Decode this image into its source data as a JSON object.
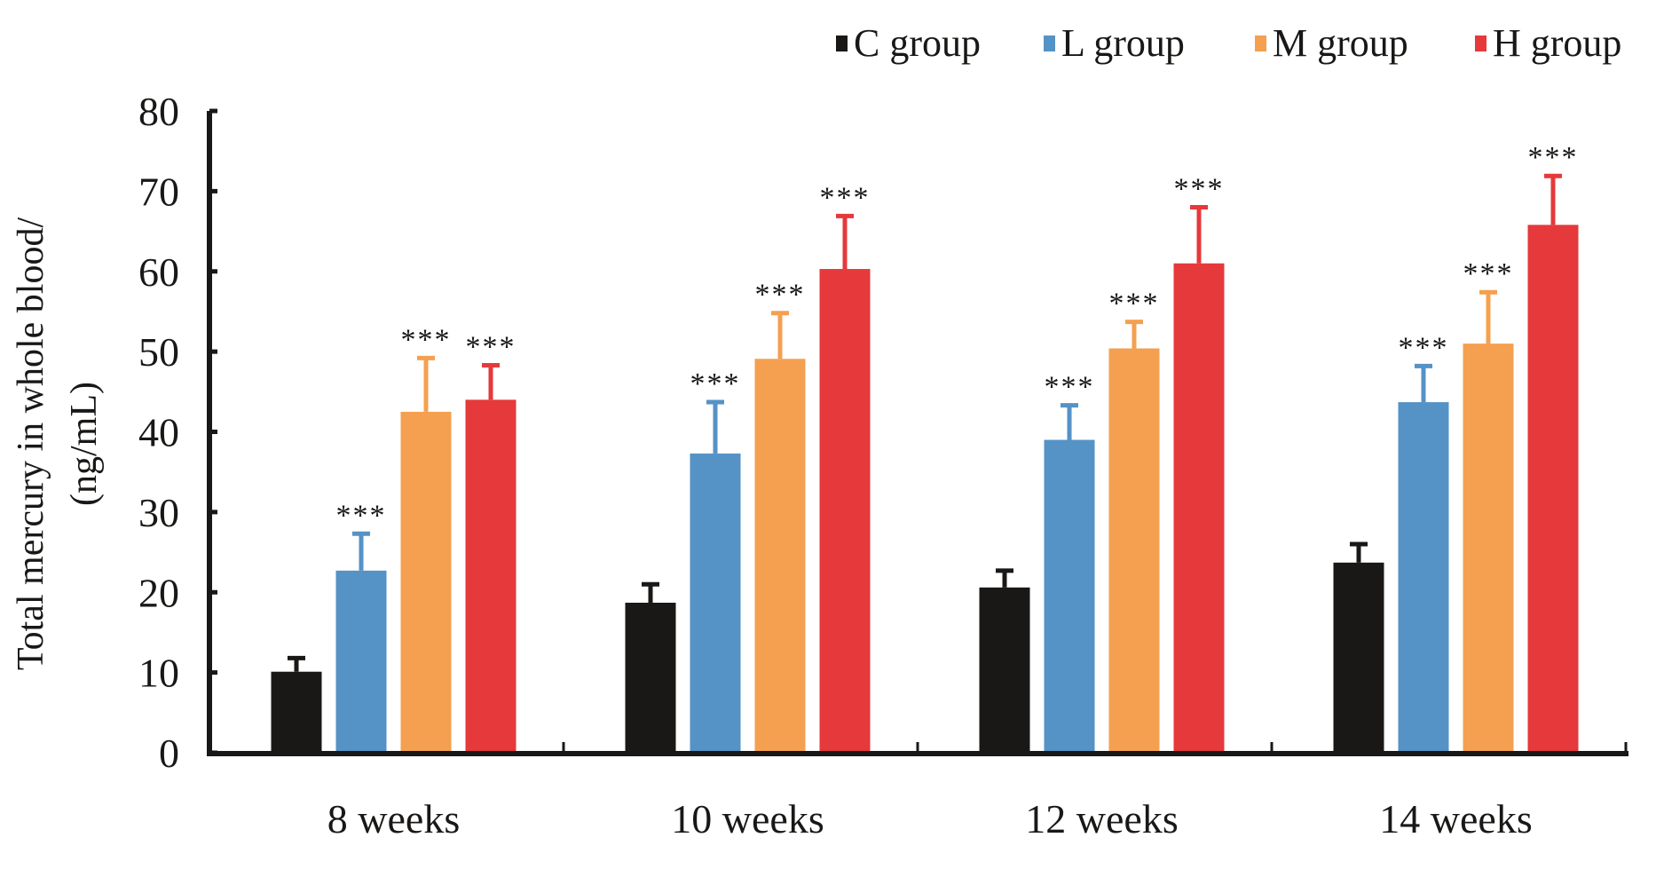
{
  "chart_data": {
    "type": "bar",
    "title": "",
    "xlabel": "",
    "ylabel_line1": "Total mercury in whole blood/",
    "ylabel_line2": "(ng/mL)",
    "ylim": [
      0,
      80
    ],
    "yticks": [
      0,
      10,
      20,
      30,
      40,
      50,
      60,
      70,
      80
    ],
    "grid": false,
    "legend_position": "top-right",
    "categories": [
      "8 weeks",
      "10 weeks",
      "12 weeks",
      "14 weeks"
    ],
    "series": [
      {
        "name": "C group",
        "color": "#1a1816",
        "values": [
          10.1,
          18.7,
          20.6,
          23.7
        ],
        "error_upper": [
          11.8,
          21.0,
          22.7,
          26.0
        ],
        "significance": [
          "",
          "",
          "",
          ""
        ]
      },
      {
        "name": "L group",
        "color": "#5592c6",
        "values": [
          22.7,
          37.3,
          39.0,
          43.7
        ],
        "error_upper": [
          27.3,
          43.7,
          43.3,
          48.2
        ],
        "significance": [
          "***",
          "***",
          "***",
          "***"
        ]
      },
      {
        "name": "M group",
        "color": "#f4a050",
        "values": [
          42.5,
          49.1,
          50.4,
          51.0
        ],
        "error_upper": [
          49.2,
          54.8,
          53.7,
          57.4
        ],
        "significance": [
          "***",
          "***",
          "***",
          "***"
        ]
      },
      {
        "name": "H group",
        "color": "#e5393b",
        "values": [
          44.0,
          60.3,
          61.0,
          65.8
        ],
        "error_upper": [
          48.3,
          66.9,
          68.0,
          71.9
        ],
        "significance": [
          "***",
          "***",
          "***",
          "***"
        ]
      }
    ]
  }
}
